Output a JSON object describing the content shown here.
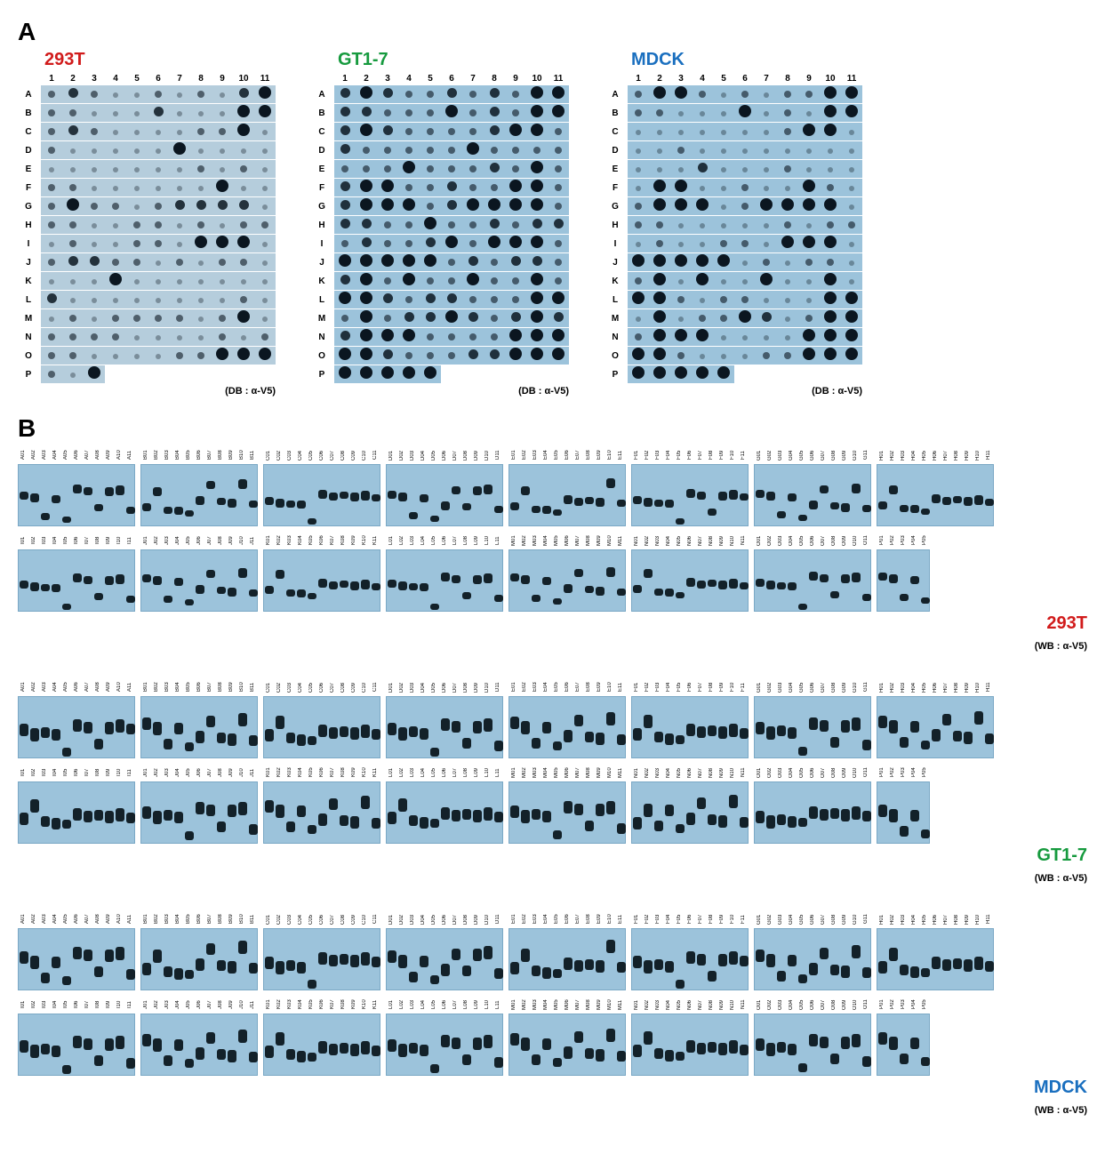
{
  "panelA": {
    "label": "A",
    "cellLines": [
      {
        "name": "293T",
        "color": "#d11b1b"
      },
      {
        "name": "GT1-7",
        "color": "#169a3e"
      },
      {
        "name": "MDCK",
        "color": "#1a6fbf"
      }
    ],
    "columns": [
      "1",
      "2",
      "3",
      "4",
      "5",
      "6",
      "7",
      "8",
      "9",
      "10",
      "11"
    ],
    "rows": [
      "A",
      "B",
      "C",
      "D",
      "E",
      "F",
      "G",
      "H",
      "I",
      "J",
      "K",
      "L",
      "M",
      "N",
      "O",
      "P"
    ],
    "caption": "(DB : α-V5)",
    "stripPairs": [
      [
        0,
        1
      ],
      [
        2,
        3
      ],
      [
        4,
        5
      ],
      [
        6,
        7
      ],
      [
        8,
        9
      ],
      [
        10,
        11
      ],
      [
        12,
        13
      ],
      [
        14,
        15
      ]
    ],
    "grids": {
      "293T": {
        "bg": "#b5cddc",
        "intensities": [
          [
            2,
            3,
            2,
            1,
            1,
            2,
            1,
            2,
            1,
            3,
            4
          ],
          [
            2,
            2,
            1,
            1,
            1,
            3,
            1,
            1,
            1,
            4,
            4
          ],
          [
            2,
            3,
            2,
            1,
            1,
            1,
            1,
            2,
            2,
            4,
            1
          ],
          [
            2,
            1,
            1,
            1,
            1,
            1,
            4,
            1,
            1,
            1,
            1
          ],
          [
            1,
            1,
            1,
            1,
            1,
            1,
            1,
            2,
            1,
            2,
            1
          ],
          [
            2,
            2,
            1,
            1,
            1,
            1,
            1,
            1,
            4,
            1,
            1
          ],
          [
            2,
            4,
            2,
            2,
            1,
            2,
            3,
            3,
            3,
            3,
            1
          ],
          [
            2,
            2,
            1,
            1,
            2,
            2,
            1,
            2,
            1,
            2,
            2
          ],
          [
            1,
            2,
            1,
            1,
            2,
            2,
            1,
            4,
            4,
            4,
            1
          ],
          [
            2,
            3,
            3,
            2,
            2,
            1,
            2,
            1,
            2,
            2,
            1
          ],
          [
            1,
            1,
            1,
            4,
            1,
            1,
            1,
            1,
            1,
            1,
            1
          ],
          [
            3,
            1,
            1,
            1,
            1,
            1,
            1,
            1,
            1,
            2,
            1
          ],
          [
            1,
            2,
            1,
            2,
            2,
            2,
            2,
            1,
            2,
            4,
            1
          ],
          [
            2,
            2,
            2,
            2,
            1,
            1,
            1,
            1,
            2,
            1,
            2
          ],
          [
            2,
            2,
            1,
            1,
            1,
            1,
            2,
            2,
            4,
            4,
            4
          ],
          [
            2,
            1,
            4,
            0,
            0,
            0,
            0,
            0,
            0,
            0,
            0
          ]
        ]
      },
      "GT1-7": {
        "bg": "#9cc3db",
        "intensities": [
          [
            3,
            4,
            3,
            2,
            2,
            3,
            2,
            3,
            2,
            4,
            4
          ],
          [
            3,
            3,
            2,
            2,
            2,
            4,
            2,
            3,
            2,
            4,
            4
          ],
          [
            3,
            4,
            3,
            2,
            2,
            2,
            2,
            3,
            4,
            4,
            2
          ],
          [
            3,
            2,
            2,
            2,
            2,
            2,
            4,
            2,
            2,
            2,
            2
          ],
          [
            2,
            2,
            2,
            4,
            2,
            2,
            2,
            3,
            2,
            4,
            2
          ],
          [
            3,
            4,
            4,
            2,
            2,
            3,
            2,
            2,
            4,
            4,
            2
          ],
          [
            3,
            4,
            4,
            4,
            2,
            3,
            4,
            4,
            4,
            4,
            2
          ],
          [
            3,
            3,
            2,
            2,
            4,
            2,
            2,
            3,
            2,
            3,
            3
          ],
          [
            2,
            3,
            2,
            2,
            3,
            4,
            2,
            4,
            4,
            4,
            2
          ],
          [
            4,
            4,
            4,
            4,
            4,
            2,
            3,
            2,
            3,
            3,
            2
          ],
          [
            3,
            4,
            2,
            4,
            2,
            2,
            4,
            2,
            2,
            4,
            2
          ],
          [
            4,
            4,
            3,
            2,
            3,
            3,
            2,
            2,
            2,
            4,
            4
          ],
          [
            2,
            4,
            2,
            3,
            3,
            4,
            3,
            2,
            3,
            4,
            3
          ],
          [
            3,
            4,
            4,
            4,
            2,
            2,
            2,
            2,
            4,
            4,
            4
          ],
          [
            4,
            4,
            3,
            2,
            2,
            2,
            3,
            3,
            4,
            4,
            4
          ],
          [
            4,
            4,
            4,
            4,
            4,
            0,
            0,
            0,
            0,
            0,
            0
          ]
        ]
      },
      "MDCK": {
        "bg": "#9cc3db",
        "intensities": [
          [
            2,
            4,
            4,
            2,
            1,
            2,
            1,
            2,
            2,
            4,
            4
          ],
          [
            2,
            2,
            1,
            1,
            1,
            4,
            1,
            2,
            1,
            4,
            4
          ],
          [
            1,
            1,
            1,
            1,
            1,
            1,
            1,
            2,
            4,
            4,
            1
          ],
          [
            1,
            1,
            2,
            1,
            1,
            1,
            1,
            1,
            1,
            1,
            1
          ],
          [
            1,
            1,
            1,
            3,
            1,
            1,
            1,
            2,
            1,
            1,
            1
          ],
          [
            1,
            4,
            4,
            1,
            1,
            2,
            1,
            1,
            4,
            2,
            1
          ],
          [
            2,
            4,
            4,
            4,
            1,
            2,
            4,
            4,
            4,
            4,
            1
          ],
          [
            2,
            2,
            1,
            1,
            1,
            1,
            1,
            2,
            1,
            2,
            2
          ],
          [
            1,
            2,
            1,
            1,
            2,
            2,
            1,
            4,
            4,
            4,
            1
          ],
          [
            4,
            4,
            4,
            4,
            4,
            1,
            2,
            1,
            2,
            2,
            1
          ],
          [
            2,
            4,
            1,
            4,
            1,
            1,
            4,
            1,
            1,
            4,
            1
          ],
          [
            4,
            4,
            2,
            1,
            2,
            2,
            1,
            1,
            1,
            4,
            4
          ],
          [
            1,
            4,
            1,
            2,
            2,
            4,
            3,
            1,
            2,
            4,
            4
          ],
          [
            2,
            4,
            4,
            4,
            1,
            1,
            1,
            1,
            4,
            4,
            4
          ],
          [
            4,
            4,
            2,
            1,
            1,
            1,
            2,
            2,
            4,
            4,
            4
          ],
          [
            4,
            4,
            4,
            4,
            4,
            0,
            0,
            0,
            0,
            0,
            0
          ]
        ]
      }
    },
    "dotStyle": {
      "sizes": {
        "0": 0,
        "1": 6,
        "2": 8,
        "3": 11,
        "4": 14
      },
      "opacity": {
        "0": 0,
        "1": 0.35,
        "2": 0.6,
        "3": 0.85,
        "4": 1.0
      },
      "color": "#0b1620"
    }
  },
  "panelB": {
    "label": "B",
    "caption": "(WB : α-V5)",
    "sections": [
      {
        "name": "293T",
        "color": "#d11b1b"
      },
      {
        "name": "GT1-7",
        "color": "#169a3e"
      },
      {
        "name": "MDCK",
        "color": "#1a6fbf"
      }
    ],
    "row1Groups": [
      "A",
      "B",
      "C",
      "D",
      "E",
      "F",
      "G",
      "H"
    ],
    "row2Groups": [
      "I",
      "J",
      "K",
      "L",
      "M",
      "N",
      "O",
      "P"
    ],
    "lanesPerGroup": 11,
    "lastGroupLanes": 5,
    "laneWidthPx": 12,
    "stripHeightPx": 70,
    "bandColor": "#0c1820",
    "bg": "#9cc3db",
    "bandDefs": {
      "default": [
        {
          "y": 35,
          "h": 9
        },
        {
          "y": 30,
          "h": 10
        },
        {
          "y": 45,
          "h": 8
        },
        {
          "y": 38,
          "h": 9
        },
        {
          "y": 55,
          "h": 7
        },
        {
          "y": 32,
          "h": 10
        },
        {
          "y": 28,
          "h": 9
        },
        {
          "y": 40,
          "h": 8
        },
        {
          "y": 34,
          "h": 10
        },
        {
          "y": 25,
          "h": 11
        },
        {
          "y": 42,
          "h": 8
        }
      ],
      "heavy": [
        {
          "y": 30,
          "h": 14
        },
        {
          "y": 28,
          "h": 15
        },
        {
          "y": 40,
          "h": 12
        },
        {
          "y": 35,
          "h": 13
        },
        {
          "y": 50,
          "h": 10
        },
        {
          "y": 30,
          "h": 14
        },
        {
          "y": 26,
          "h": 13
        },
        {
          "y": 38,
          "h": 12
        },
        {
          "y": 32,
          "h": 14
        },
        {
          "y": 22,
          "h": 15
        },
        {
          "y": 40,
          "h": 12
        }
      ]
    }
  }
}
